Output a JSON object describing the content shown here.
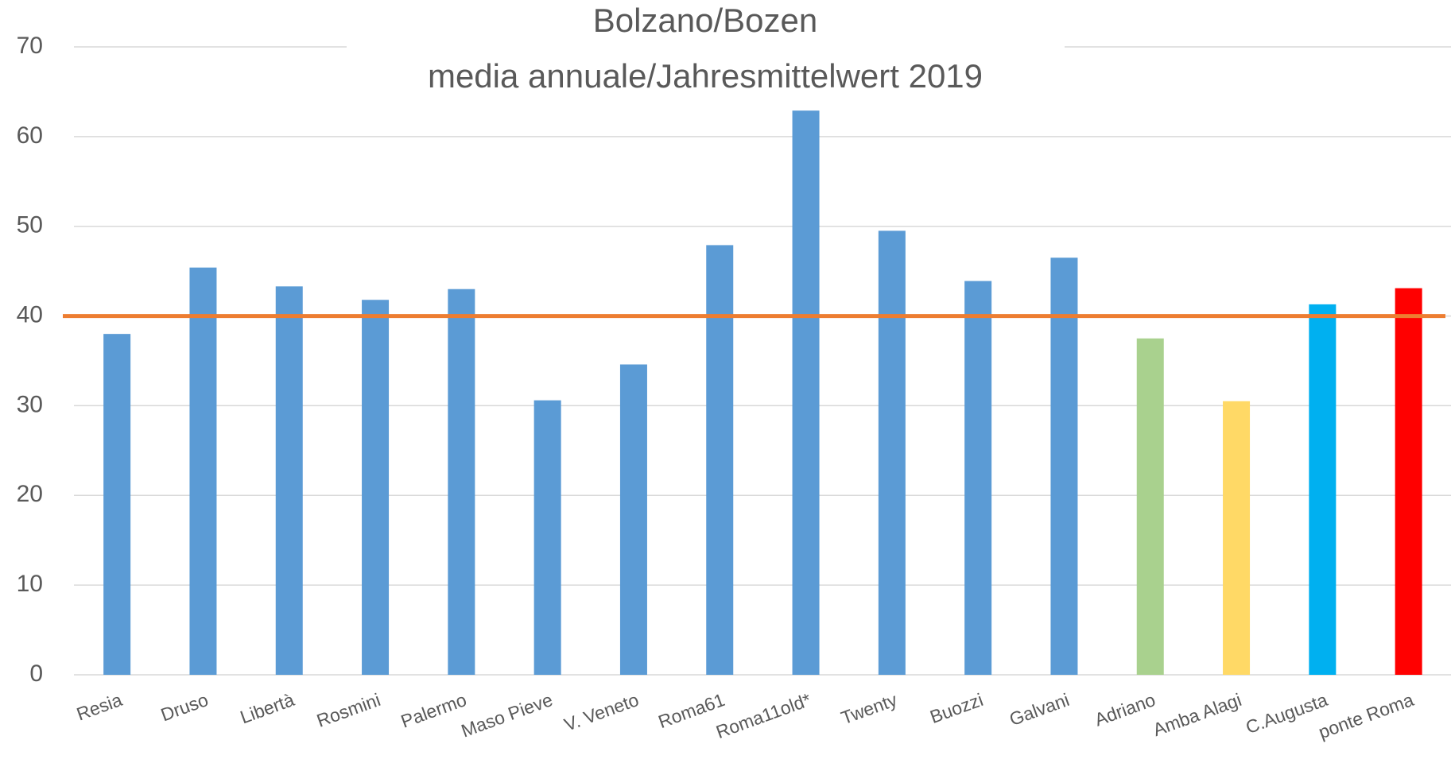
{
  "chart_data": {
    "type": "bar",
    "title": "Bolzano/Bozen",
    "subtitle": "media annuale/Jahresmittelwert 2019",
    "categories": [
      "Resia",
      "Druso",
      "Libertà",
      "Rosmini",
      "Palermo",
      "Maso Pieve",
      "V. Veneto",
      "Roma61",
      "Roma11old*",
      "Twenty",
      "Buozzi",
      "Galvani",
      "Adriano",
      "Amba Alagi",
      "C.Augusta",
      "ponte Roma"
    ],
    "values": [
      38,
      45.4,
      43.3,
      41.8,
      43,
      30.6,
      34.6,
      47.9,
      62.9,
      49.5,
      43.9,
      46.5,
      37.5,
      30.5,
      41.3,
      43.1
    ],
    "colors": [
      "#5b9bd5",
      "#5b9bd5",
      "#5b9bd5",
      "#5b9bd5",
      "#5b9bd5",
      "#5b9bd5",
      "#5b9bd5",
      "#5b9bd5",
      "#5b9bd5",
      "#5b9bd5",
      "#5b9bd5",
      "#5b9bd5",
      "#a9d18e",
      "#ffd966",
      "#00b0f0",
      "#ff0000"
    ],
    "reference_line": {
      "value": 40,
      "color": "#ed7d31"
    },
    "ylim": [
      0,
      70
    ],
    "yticks": [
      0,
      10,
      20,
      30,
      40,
      50,
      60,
      70
    ],
    "grid": true
  }
}
